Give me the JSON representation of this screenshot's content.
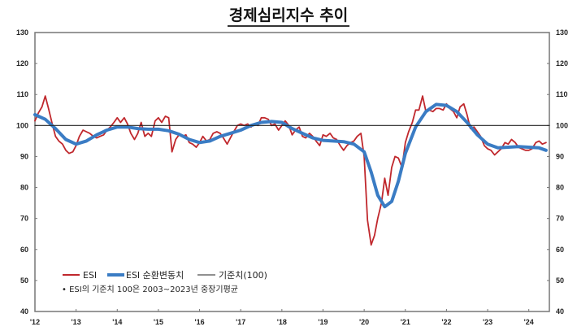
{
  "title": "경제심리지수 추이",
  "legend": {
    "esi": "ESI",
    "cyclical": "ESI 순환변동치",
    "baseline": "기준치(100)",
    "note": "• ESI의 기준치 100은 2003~2023년 중장기평균"
  },
  "colors": {
    "esi": "#c0282d",
    "cyclical": "#3a7cc4",
    "baseline": "#222222",
    "axis": "#777777"
  },
  "chart_data": {
    "type": "line",
    "title": "경제심리지수 추이",
    "xlabel": "",
    "ylabel": "",
    "ylim": [
      40,
      130
    ],
    "yticks": [
      40,
      50,
      60,
      70,
      80,
      90,
      100,
      110,
      120,
      130
    ],
    "ytick_labels_left": [
      "40",
      "50",
      "60",
      "70",
      "80",
      "90",
      "100",
      "110",
      "120",
      "130"
    ],
    "ytick_labels_right": [
      "40",
      "50",
      "60",
      "70",
      "80",
      "90",
      "100",
      "110",
      "120",
      "130"
    ],
    "xtick_labels": [
      "'12",
      "'13",
      "'14",
      "'15",
      "'16",
      "'17",
      "'18",
      "'19",
      "'20",
      "'21",
      "'22",
      "'23",
      "'24"
    ],
    "xlim": [
      2012.0,
      2024.5
    ],
    "grid": false,
    "legend_position": "lower-left",
    "baseline_value": 100,
    "series": [
      {
        "name": "ESI",
        "x": [
          2012.0,
          2012.08,
          2012.17,
          2012.25,
          2012.33,
          2012.42,
          2012.5,
          2012.58,
          2012.67,
          2012.75,
          2012.83,
          2012.92,
          2013.0,
          2013.08,
          2013.17,
          2013.25,
          2013.33,
          2013.42,
          2013.5,
          2013.58,
          2013.67,
          2013.75,
          2013.83,
          2013.92,
          2014.0,
          2014.08,
          2014.17,
          2014.25,
          2014.33,
          2014.42,
          2014.5,
          2014.58,
          2014.67,
          2014.75,
          2014.83,
          2014.92,
          2015.0,
          2015.08,
          2015.17,
          2015.25,
          2015.33,
          2015.42,
          2015.5,
          2015.58,
          2015.67,
          2015.75,
          2015.83,
          2015.92,
          2016.0,
          2016.08,
          2016.17,
          2016.25,
          2016.33,
          2016.42,
          2016.5,
          2016.58,
          2016.67,
          2016.75,
          2016.83,
          2016.92,
          2017.0,
          2017.08,
          2017.17,
          2017.25,
          2017.33,
          2017.42,
          2017.5,
          2017.58,
          2017.67,
          2017.75,
          2017.83,
          2017.92,
          2018.0,
          2018.08,
          2018.17,
          2018.25,
          2018.33,
          2018.42,
          2018.5,
          2018.58,
          2018.67,
          2018.75,
          2018.83,
          2018.92,
          2019.0,
          2019.08,
          2019.17,
          2019.25,
          2019.33,
          2019.42,
          2019.5,
          2019.58,
          2019.67,
          2019.75,
          2019.83,
          2019.92,
          2020.0,
          2020.08,
          2020.17,
          2020.25,
          2020.33,
          2020.42,
          2020.5,
          2020.58,
          2020.67,
          2020.75,
          2020.83,
          2020.92,
          2021.0,
          2021.08,
          2021.17,
          2021.25,
          2021.33,
          2021.42,
          2021.5,
          2021.58,
          2021.67,
          2021.75,
          2021.83,
          2021.92,
          2022.0,
          2022.08,
          2022.17,
          2022.25,
          2022.33,
          2022.42,
          2022.5,
          2022.58,
          2022.67,
          2022.75,
          2022.83,
          2022.92,
          2023.0,
          2023.08,
          2023.17,
          2023.25,
          2023.33,
          2023.42,
          2023.5,
          2023.58,
          2023.67,
          2023.75,
          2023.83,
          2023.92,
          2024.0,
          2024.08,
          2024.17,
          2024.25,
          2024.33,
          2024.42
        ],
        "values": [
          101.5,
          104.0,
          106.0,
          109.5,
          105.5,
          100.5,
          96.5,
          95.0,
          94.0,
          92.0,
          91.0,
          91.5,
          93.5,
          96.5,
          98.5,
          98.0,
          97.5,
          96.5,
          96.0,
          96.5,
          97.0,
          98.5,
          99.5,
          101.0,
          102.5,
          101.0,
          102.5,
          100.5,
          97.5,
          95.5,
          97.5,
          101.0,
          96.5,
          97.5,
          96.5,
          101.5,
          102.5,
          101.0,
          103.0,
          102.5,
          91.5,
          95.5,
          97.0,
          96.5,
          97.0,
          94.5,
          94.0,
          93.0,
          94.5,
          96.5,
          95.0,
          95.5,
          97.5,
          98.0,
          97.5,
          96.0,
          94.0,
          96.0,
          98.0,
          100.0,
          100.5,
          100.0,
          100.5,
          99.5,
          100.5,
          100.0,
          102.5,
          102.5,
          102.0,
          100.0,
          100.5,
          98.5,
          100.0,
          101.5,
          100.0,
          97.0,
          98.5,
          99.5,
          96.5,
          96.0,
          97.5,
          96.5,
          95.0,
          93.5,
          97.0,
          96.5,
          97.5,
          96.0,
          95.5,
          93.5,
          92.0,
          93.5,
          94.5,
          95.0,
          96.5,
          97.5,
          90.0,
          69.5,
          61.5,
          64.5,
          70.0,
          75.0,
          83.0,
          77.5,
          86.5,
          90.0,
          89.5,
          86.5,
          94.5,
          98.0,
          101.0,
          105.0,
          105.0,
          109.5,
          104.5,
          105.0,
          104.5,
          105.5,
          105.5,
          105.0,
          107.0,
          105.5,
          104.5,
          102.5,
          106.0,
          107.0,
          103.5,
          99.0,
          99.5,
          98.0,
          96.5,
          93.5,
          92.5,
          92.0,
          90.5,
          91.5,
          92.5,
          94.5,
          94.0,
          95.5,
          94.5,
          93.0,
          92.5,
          92.0,
          92.0,
          92.5,
          94.5,
          95.0,
          94.0,
          94.5
        ],
        "color": "#c0282d"
      },
      {
        "name": "ESI 순환변동치",
        "x": [
          2012.0,
          2012.25,
          2012.5,
          2012.75,
          2013.0,
          2013.25,
          2013.5,
          2013.75,
          2014.0,
          2014.25,
          2014.5,
          2014.75,
          2015.0,
          2015.25,
          2015.5,
          2015.75,
          2016.0,
          2016.25,
          2016.5,
          2016.75,
          2017.0,
          2017.25,
          2017.5,
          2017.75,
          2018.0,
          2018.25,
          2018.5,
          2018.75,
          2019.0,
          2019.25,
          2019.5,
          2019.75,
          2020.0,
          2020.17,
          2020.33,
          2020.5,
          2020.67,
          2020.83,
          2021.0,
          2021.25,
          2021.5,
          2021.75,
          2022.0,
          2022.25,
          2022.5,
          2022.75,
          2023.0,
          2023.25,
          2023.5,
          2023.75,
          2024.0,
          2024.25,
          2024.42
        ],
        "values": [
          103.5,
          102.0,
          99.0,
          95.5,
          94.0,
          95.0,
          97.0,
          98.5,
          99.5,
          99.5,
          99.0,
          98.8,
          98.8,
          98.3,
          97.2,
          95.5,
          94.5,
          95.0,
          96.5,
          97.5,
          98.5,
          100.0,
          101.0,
          101.3,
          101.0,
          99.0,
          97.5,
          96.0,
          95.2,
          95.0,
          94.8,
          94.0,
          91.5,
          85.0,
          77.5,
          73.8,
          75.5,
          82.0,
          91.0,
          99.5,
          104.5,
          106.8,
          106.5,
          104.5,
          101.0,
          97.0,
          94.0,
          92.8,
          93.0,
          93.2,
          93.0,
          92.8,
          92.0
        ],
        "color": "#3a7cc4"
      },
      {
        "name": "기준치(100)",
        "x": [
          2012.0,
          2024.5
        ],
        "values": [
          100,
          100
        ],
        "color": "#222222"
      }
    ]
  }
}
